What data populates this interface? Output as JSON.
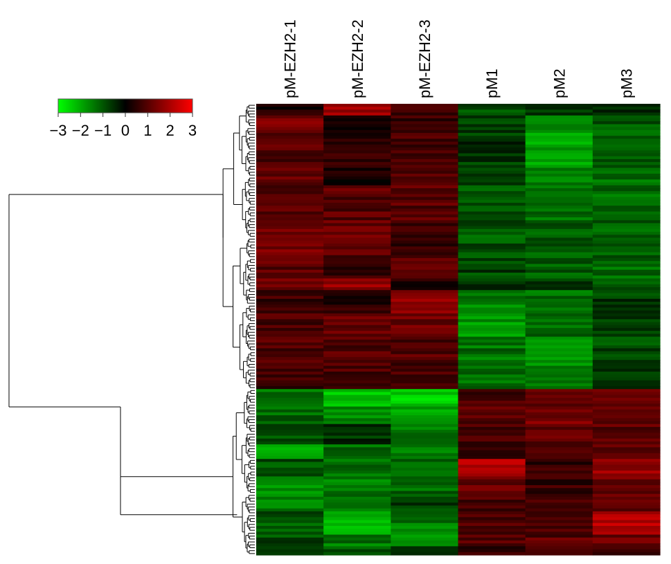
{
  "chart_data": {
    "type": "heatmap",
    "columns": [
      "pM-EZH2-1",
      "pM-EZH2-2",
      "pM-EZH2-3",
      "pM1",
      "pM2",
      "pM3"
    ],
    "color_scale": {
      "ticks": [
        "−3",
        "−2",
        "−1",
        "0",
        "1",
        "2",
        "3"
      ],
      "range": [
        -3,
        3
      ],
      "low_color": "#00ff00",
      "mid_color": "#000000",
      "high_color": "#ff0000"
    },
    "row_clusters": [
      {
        "size": 98,
        "pattern": [
          1.1,
          1.0,
          0.9,
          -1.0,
          -1.3,
          -1.0
        ]
      },
      {
        "size": 57,
        "pattern": [
          -1.5,
          -1.6,
          -1.7,
          1.2,
          1.0,
          1.4
        ]
      }
    ],
    "blocks": [
      {
        "rows": [
          0,
          4
        ],
        "values": [
          0.3,
          1.8,
          0.8,
          -1.0,
          -0.6,
          -0.5
        ]
      },
      {
        "rows": [
          4,
          10
        ],
        "values": [
          1.3,
          0.4,
          0.6,
          -0.8,
          -1.6,
          -1.0
        ]
      },
      {
        "rows": [
          10,
          22
        ],
        "values": [
          1.0,
          0.5,
          0.9,
          -0.6,
          -2.0,
          -1.2
        ]
      },
      {
        "rows": [
          22,
          28
        ],
        "values": [
          1.2,
          0.4,
          0.8,
          -0.7,
          -1.4,
          -1.3
        ]
      },
      {
        "rows": [
          28,
          40
        ],
        "values": [
          0.9,
          1.0,
          1.0,
          -1.1,
          -1.2,
          -1.3
        ]
      },
      {
        "rows": [
          40,
          52
        ],
        "values": [
          1.3,
          1.2,
          0.7,
          -1.0,
          -1.0,
          -1.1
        ]
      },
      {
        "rows": [
          52,
          60
        ],
        "values": [
          1.0,
          0.6,
          0.9,
          -0.8,
          -1.0,
          -1.2
        ]
      },
      {
        "rows": [
          60,
          64
        ],
        "values": [
          1.5,
          1.7,
          0.5,
          -0.5,
          -0.7,
          -0.9
        ]
      },
      {
        "rows": [
          64,
          72
        ],
        "values": [
          0.7,
          0.5,
          1.6,
          -1.5,
          -1.2,
          -0.7
        ]
      },
      {
        "rows": [
          72,
          80
        ],
        "values": [
          0.8,
          1.1,
          1.2,
          -1.7,
          -1.3,
          -0.6
        ]
      },
      {
        "rows": [
          80,
          89
        ],
        "values": [
          0.9,
          1.0,
          1.0,
          -1.3,
          -1.8,
          -0.8
        ]
      },
      {
        "rows": [
          89,
          98
        ],
        "values": [
          0.8,
          0.9,
          0.8,
          -1.4,
          -1.6,
          -0.7
        ]
      },
      {
        "rows": [
          98,
          104
        ],
        "values": [
          -1.4,
          -2.2,
          -2.5,
          0.8,
          0.9,
          1.0
        ]
      },
      {
        "rows": [
          104,
          110
        ],
        "values": [
          -1.2,
          -1.5,
          -2.0,
          1.0,
          1.4,
          1.1
        ]
      },
      {
        "rows": [
          110,
          117
        ],
        "values": [
          -1.0,
          -0.5,
          -1.5,
          0.9,
          1.2,
          1.0
        ]
      },
      {
        "rows": [
          117,
          122
        ],
        "values": [
          -2.0,
          -1.2,
          -1.3,
          0.7,
          1.1,
          1.1
        ]
      },
      {
        "rows": [
          122,
          128
        ],
        "values": [
          -0.9,
          -1.3,
          -1.0,
          2.0,
          0.6,
          1.8
        ]
      },
      {
        "rows": [
          128,
          136
        ],
        "values": [
          -1.6,
          -1.4,
          -1.2,
          1.3,
          0.7,
          1.3
        ]
      },
      {
        "rows": [
          136,
          140
        ],
        "values": [
          -1.5,
          -1.3,
          -0.8,
          0.9,
          0.9,
          1.0
        ]
      },
      {
        "rows": [
          140,
          148
        ],
        "values": [
          -1.0,
          -2.3,
          -1.4,
          1.0,
          0.9,
          2.1
        ]
      },
      {
        "rows": [
          148,
          152
        ],
        "values": [
          -0.9,
          -1.4,
          -1.7,
          0.9,
          1.0,
          1.3
        ]
      },
      {
        "rows": [
          152,
          155
        ],
        "values": [
          -0.8,
          -1.1,
          -0.9,
          0.6,
          0.9,
          0.8
        ]
      }
    ]
  }
}
